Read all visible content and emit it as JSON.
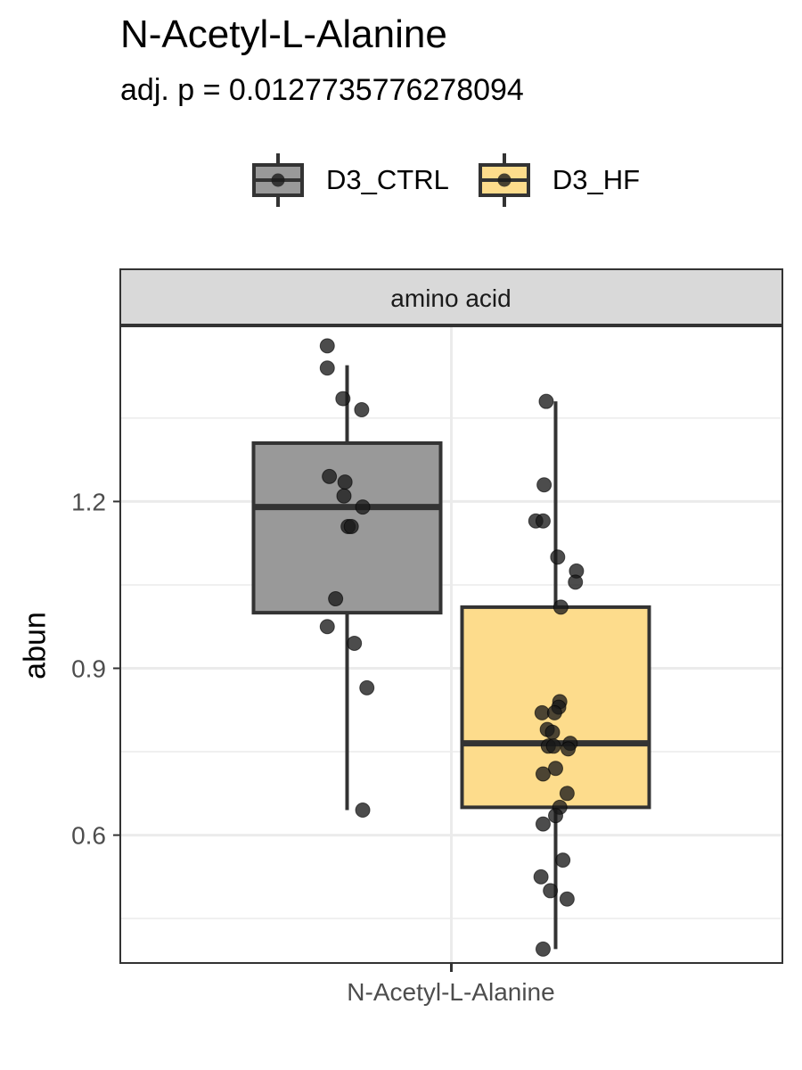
{
  "header": {
    "title": "N-Acetyl-L-Alanine",
    "subtitle": "adj. p = 0.0127735776278094"
  },
  "legend": {
    "items": [
      {
        "label": "D3_CTRL",
        "fill": "#999999",
        "border": "#333333"
      },
      {
        "label": "D3_HF",
        "fill": "#fddc8c",
        "border": "#333333"
      }
    ]
  },
  "colors": {
    "point": "#1a1a1a",
    "strip_bg": "#d9d9d9",
    "grid": "#ebebeb",
    "axis_text": "#4d4d4d"
  },
  "chart_data": {
    "type": "box",
    "title": "N-Acetyl-L-Alanine",
    "subtitle": "adj. p = 0.0127735776278094",
    "facet": "amino acid",
    "xlabel": "",
    "ylabel": "abun",
    "categories": [
      "N-Acetyl-L-Alanine"
    ],
    "y_ticks": [
      0.6,
      0.9,
      1.2
    ],
    "ylim": [
      0.37,
      1.515
    ],
    "grid": true,
    "legend_position": "top",
    "series": [
      {
        "name": "D3_CTRL",
        "color": "#999999",
        "box": {
          "min": 0.645,
          "q1": 1.0,
          "median": 1.19,
          "q3": 1.305,
          "max": 1.445
        },
        "points": [
          {
            "dx": -0.19,
            "y": 1.48
          },
          {
            "dx": -0.19,
            "y": 1.44
          },
          {
            "dx": -0.04,
            "y": 1.385
          },
          {
            "dx": 0.14,
            "y": 1.365
          },
          {
            "dx": -0.17,
            "y": 1.245
          },
          {
            "dx": -0.02,
            "y": 1.235
          },
          {
            "dx": -0.03,
            "y": 1.21
          },
          {
            "dx": 0.15,
            "y": 1.19
          },
          {
            "dx": 0.01,
            "y": 1.155
          },
          {
            "dx": 0.04,
            "y": 1.155
          },
          {
            "dx": -0.11,
            "y": 1.025
          },
          {
            "dx": -0.19,
            "y": 0.975
          },
          {
            "dx": 0.07,
            "y": 0.945
          },
          {
            "dx": 0.19,
            "y": 0.865
          },
          {
            "dx": 0.15,
            "y": 0.645
          }
        ]
      },
      {
        "name": "D3_HF",
        "color": "#fddc8c",
        "box": {
          "min": 0.395,
          "q1": 0.65,
          "median": 0.765,
          "q3": 1.01,
          "max": 1.38
        },
        "points": [
          {
            "dx": -0.09,
            "y": 1.38
          },
          {
            "dx": -0.11,
            "y": 1.23
          },
          {
            "dx": -0.19,
            "y": 1.165
          },
          {
            "dx": -0.12,
            "y": 1.165
          },
          {
            "dx": 0.02,
            "y": 1.1
          },
          {
            "dx": 0.2,
            "y": 1.075
          },
          {
            "dx": 0.19,
            "y": 1.055
          },
          {
            "dx": 0.05,
            "y": 1.01
          },
          {
            "dx": 0.04,
            "y": 0.84
          },
          {
            "dx": 0.03,
            "y": 0.83
          },
          {
            "dx": -0.13,
            "y": 0.82
          },
          {
            "dx": -0.01,
            "y": 0.82
          },
          {
            "dx": -0.08,
            "y": 0.79
          },
          {
            "dx": -0.03,
            "y": 0.785
          },
          {
            "dx": 0.14,
            "y": 0.765
          },
          {
            "dx": 0.12,
            "y": 0.755
          },
          {
            "dx": -0.07,
            "y": 0.76
          },
          {
            "dx": -0.02,
            "y": 0.76
          },
          {
            "dx": 0.0,
            "y": 0.72
          },
          {
            "dx": -0.12,
            "y": 0.71
          },
          {
            "dx": 0.11,
            "y": 0.675
          },
          {
            "dx": 0.04,
            "y": 0.65
          },
          {
            "dx": 0.0,
            "y": 0.635
          },
          {
            "dx": -0.12,
            "y": 0.62
          },
          {
            "dx": 0.07,
            "y": 0.555
          },
          {
            "dx": -0.14,
            "y": 0.525
          },
          {
            "dx": -0.05,
            "y": 0.5
          },
          {
            "dx": 0.11,
            "y": 0.485
          },
          {
            "dx": -0.12,
            "y": 0.395
          }
        ]
      }
    ]
  }
}
